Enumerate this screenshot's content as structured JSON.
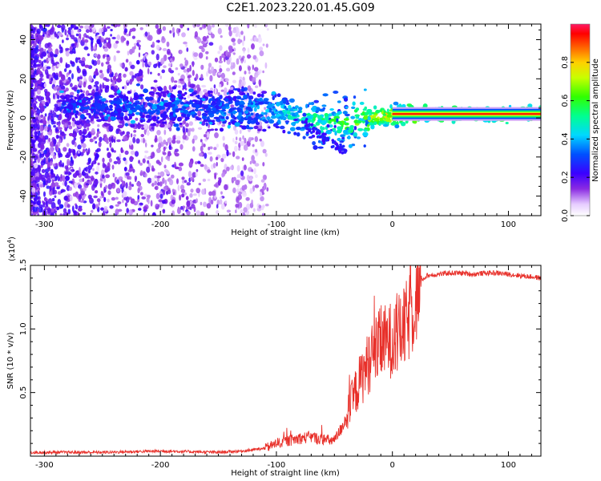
{
  "title": "C2E1.2023.220.01.45.G09",
  "chart_data": [
    {
      "type": "heatmap",
      "xlabel": "Height of straight line (km)",
      "ylabel": "Frequency (Hz)",
      "xlim": [
        -312,
        128
      ],
      "ylim": [
        -50,
        48
      ],
      "xticks": [
        "-300",
        "-200",
        "-100",
        "0",
        "100"
      ],
      "xtick_values": [
        -300,
        -200,
        -100,
        0,
        100
      ],
      "yticks": [
        "40",
        "20",
        "0",
        "-20",
        "-40"
      ],
      "ytick_values": [
        40,
        20,
        0,
        -20,
        -40
      ],
      "colorbar": {
        "label": "Normalized spectral amplitude",
        "range": [
          0,
          1
        ],
        "ticks": [
          "0.0",
          "0.2",
          "0.4",
          "0.6",
          "0.8"
        ],
        "tick_values": [
          0.0,
          0.2,
          0.4,
          0.6,
          0.8
        ],
        "colormap": "rainbow-white"
      },
      "ridge": {
        "x": [
          -312,
          -250,
          -200,
          -150,
          -120,
          -100,
          -80,
          -60,
          -40,
          -20,
          0,
          20,
          50,
          80,
          128
        ],
        "freq": [
          6,
          6,
          5,
          4,
          4,
          3,
          0,
          -2,
          -3,
          0,
          1,
          2,
          2,
          2,
          2
        ],
        "amplitude": [
          0.25,
          0.3,
          0.32,
          0.34,
          0.38,
          0.42,
          0.5,
          0.55,
          0.6,
          0.7,
          0.8,
          0.88,
          0.9,
          0.92,
          0.93
        ]
      }
    },
    {
      "type": "line",
      "xlabel": "Height of straight line (km)",
      "ylabel": "SNR (10 * v/v)",
      "yscale_label": "(x10",
      "yscale_exp": "4",
      "yscale_close": ")",
      "xlim": [
        -312,
        128
      ],
      "ylim": [
        0,
        1.5
      ],
      "xticks": [
        "-300",
        "-200",
        "-100",
        "0",
        "100"
      ],
      "xtick_values": [
        -300,
        -200,
        -100,
        0,
        100
      ],
      "yticks": [
        "1.5",
        "1.0",
        "0.5"
      ],
      "ytick_values": [
        1.5,
        1.0,
        0.5
      ],
      "color": "#e8302a",
      "x": [
        -312,
        -250,
        -200,
        -150,
        -130,
        -110,
        -100,
        -90,
        -80,
        -70,
        -60,
        -50,
        -45,
        -40,
        -35,
        -30,
        -25,
        -20,
        -15,
        -10,
        -5,
        0,
        5,
        10,
        15,
        20,
        25,
        30,
        40,
        50,
        60,
        70,
        80,
        90,
        100,
        110,
        120,
        128
      ],
      "y": [
        0.03,
        0.03,
        0.04,
        0.03,
        0.04,
        0.06,
        0.1,
        0.12,
        0.14,
        0.15,
        0.13,
        0.12,
        0.2,
        0.3,
        0.42,
        0.55,
        0.65,
        0.75,
        0.82,
        0.88,
        0.9,
        0.92,
        0.95,
        1.0,
        1.1,
        1.25,
        1.38,
        1.42,
        1.43,
        1.44,
        1.44,
        1.43,
        1.44,
        1.44,
        1.43,
        1.42,
        1.41,
        1.4
      ]
    }
  ]
}
